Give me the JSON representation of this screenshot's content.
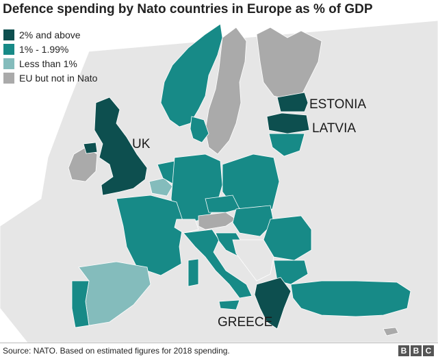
{
  "title": "Defence spending by Nato countries in Europe as % of GDP",
  "legend": {
    "items": [
      {
        "label": "2% and above",
        "color": "#0d4f4f"
      },
      {
        "label": "1% - 1.99%",
        "color": "#178a87"
      },
      {
        "label": "Less than 1%",
        "color": "#84bcbc"
      },
      {
        "label": "EU but not in Nato",
        "color": "#aaaaaa"
      }
    ]
  },
  "map_colors": {
    "sea": "#ffffff",
    "land": "#e6e6e6",
    "border": "#ffffff"
  },
  "labels": {
    "uk": "UK",
    "estonia": "ESTONIA",
    "latvia": "LATVIA",
    "greece": "GREECE"
  },
  "footer": {
    "source": "Source: NATO. Based on estimated figures for 2018 spending.",
    "logo": [
      "B",
      "B",
      "C"
    ]
  }
}
